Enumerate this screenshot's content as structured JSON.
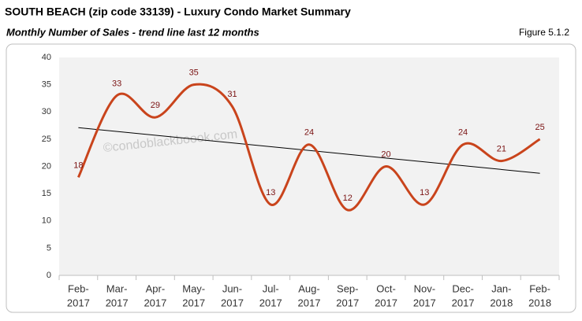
{
  "header": {
    "title": "SOUTH BEACH (zip code 33139) - Luxury Condo Market Summary",
    "subtitle": "Monthly Number of Sales - trend line last 12 months",
    "figure": "Figure 5.1.2"
  },
  "chart_data": {
    "type": "line",
    "watermark": "©condoblackboook.com",
    "categories": [
      [
        "Feb-",
        "2017"
      ],
      [
        "Mar-",
        "2017"
      ],
      [
        "Apr-",
        "2017"
      ],
      [
        "May-",
        "2017"
      ],
      [
        "Jun-",
        "2017"
      ],
      [
        "Jul-",
        "2017"
      ],
      [
        "Aug-",
        "2017"
      ],
      [
        "Sep-",
        "2017"
      ],
      [
        "Oct-",
        "2017"
      ],
      [
        "Nov-",
        "2017"
      ],
      [
        "Dec-",
        "2017"
      ],
      [
        "Jan-",
        "2018"
      ],
      [
        "Feb-",
        "2018"
      ]
    ],
    "values": [
      18,
      33,
      29,
      35,
      31,
      13,
      24,
      12,
      20,
      13,
      24,
      21,
      25
    ],
    "color": "#c9441c",
    "label_color": "#7a1212",
    "trendline": true,
    "trend_color": "#000000",
    "ylim": [
      0,
      40
    ],
    "yticks": [
      0,
      5,
      10,
      15,
      20,
      25,
      30,
      35,
      40
    ],
    "grid": false,
    "smooth": true
  }
}
